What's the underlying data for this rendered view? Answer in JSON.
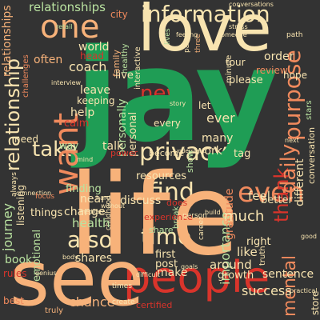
{
  "words": {
    "jay": "jay",
    "life": "life",
    "love": "love",
    "one": "one",
    "see": "see",
    "people": "people",
    "information": "information",
    "want": "want",
    "privacy": "privacy",
    "new": "new",
    "find": "find",
    "time": "time",
    "even": "even",
    "also": "also",
    "take": "take",
    "daily": "daily",
    "purpose": "purpose",
    "thank": "thank",
    "journey": "journey",
    "relationship": "relationship",
    "relationships": "relationships",
    "coach": "coach",
    "world": "world",
    "live": "live",
    "help": "help",
    "leave": "leave",
    "keeping": "keeping",
    "work": "work",
    "tag": "tag",
    "many": "many",
    "ever": "ever",
    "show": "show",
    "please": "please",
    "review": "review",
    "order": "order",
    "hope": "hope",
    "city": "city",
    "often": "often",
    "head": "head",
    "calm": "calm",
    "healthy": "healthy",
    "family": "family",
    "different": "different",
    "conversation": "conversation",
    "listening": "listening",
    "emotional": "emotional",
    "things": "things",
    "need": "need",
    "finding": "finding",
    "health": "health",
    "change": "change",
    "near": "near",
    "book": "book",
    "shares": "shares",
    "first": "first",
    "post": "post",
    "make": "make",
    "discuss": "discuss",
    "resources": "resources",
    "experience": "experience",
    "share": "share",
    "certified": "certified",
    "mental": "mental",
    "success": "success",
    "sentence": "sentence",
    "growth": "growth",
    "like": "like",
    "much": "much",
    "better": "better",
    "feel": "feel",
    "store": "store",
    "right": "right",
    "gratitude": "gratitude",
    "importance": "importance",
    "around": "around",
    "chance": "chance",
    "best": "best",
    "truly": "truly",
    "create": "create",
    "times": "times",
    "become": "become",
    "talk": "talk",
    "power": "power",
    "every": "every",
    "understand": "understand",
    "personal": "personal",
    "personally": "personally",
    "interactive": "interactive",
    "let": "let",
    "tour": "tour",
    "three": "three",
    "partner": "partner",
    "feeling": "feeling",
    "lives": "lives",
    "interview": "interview",
    "way": "way",
    "rules": "rules",
    "mind": "mind",
    "minute": "minute",
    "stars": "stars",
    "sharing": "sharing",
    "podcast": "podcast",
    "childhood": "childhood",
    "difficult": "difficult",
    "always": "always",
    "connection": "connection",
    "focus": "focus",
    "genius": "genius",
    "goals": "goals",
    "hard": "hard",
    "stress": "stress",
    "path": "path",
    "does": "does",
    "break": "break",
    "without": "without",
    "person": "person",
    "career": "career",
    "build": "build",
    "retail": "retail",
    "mindfulness": "mindfulness",
    "body": "body",
    "truth": "truth",
    "challenges": "challenges",
    "practical": "practical",
    "guide": "guide",
    "someone": "someone",
    "story": "story",
    "meditate": "meditate",
    "conversations": "conversations",
    "potential": "potential",
    "next": "next",
    "well": "well",
    "good": "good",
    "media": "media",
    "age": "age",
    "support": "support",
    "past": "past",
    "course": "course",
    "beautiful": "beautiful",
    "self": "self",
    "happy": "happy"
  },
  "colors": {
    "background": "#333333",
    "orange": "#f7b27a",
    "cream": "#f8e4b0",
    "green": "#1f9d55",
    "red": "#d9342b",
    "light_green": "#b9e2a0",
    "salmon": "#f08a5d"
  }
}
